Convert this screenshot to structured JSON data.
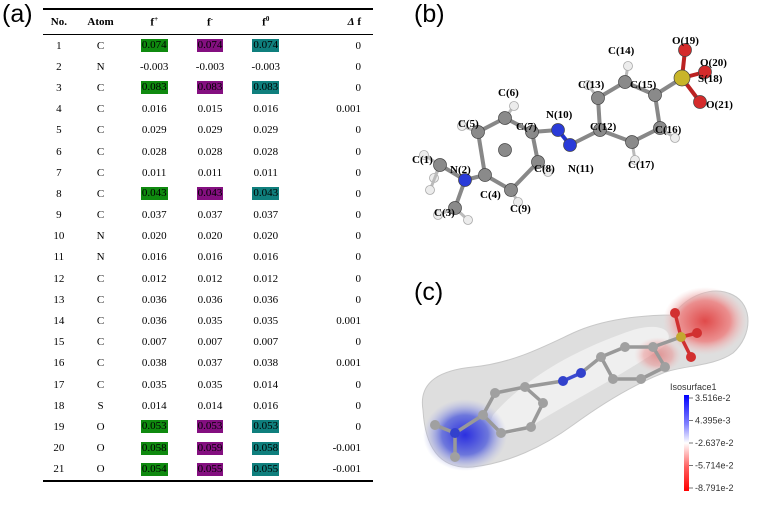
{
  "panels": {
    "a": "(a)",
    "b": "(b)",
    "c": "(c)"
  },
  "table": {
    "headers": {
      "no": "No.",
      "atom": "Atom",
      "fplus_base": "f",
      "fplus_sup": "+",
      "fminus_base": "f",
      "fminus_sup": "-",
      "fzero_base": "f",
      "fzero_sup": "0",
      "delta_sym": "Δ",
      "delta_f": "f"
    },
    "rows": [
      {
        "no": "1",
        "atom": "C",
        "fp": "0.074",
        "fm": "0.074",
        "f0": "0.074",
        "df": "0",
        "hl": true
      },
      {
        "no": "2",
        "atom": "N",
        "fp": "-0.003",
        "fm": "-0.003",
        "f0": "-0.003",
        "df": "0",
        "hl": false
      },
      {
        "no": "3",
        "atom": "C",
        "fp": "0.083",
        "fm": "0.083",
        "f0": "0.083",
        "df": "0",
        "hl": true
      },
      {
        "no": "4",
        "atom": "C",
        "fp": "0.016",
        "fm": "0.015",
        "f0": "0.016",
        "df": "0.001",
        "hl": false
      },
      {
        "no": "5",
        "atom": "C",
        "fp": "0.029",
        "fm": "0.029",
        "f0": "0.029",
        "df": "0",
        "hl": false
      },
      {
        "no": "6",
        "atom": "C",
        "fp": "0.028",
        "fm": "0.028",
        "f0": "0.028",
        "df": "0",
        "hl": false
      },
      {
        "no": "7",
        "atom": "C",
        "fp": "0.011",
        "fm": "0.011",
        "f0": "0.011",
        "df": "0",
        "hl": false
      },
      {
        "no": "8",
        "atom": "C",
        "fp": "0.043",
        "fm": "0.043",
        "f0": "0.043",
        "df": "0",
        "hl": true
      },
      {
        "no": "9",
        "atom": "C",
        "fp": "0.037",
        "fm": "0.037",
        "f0": "0.037",
        "df": "0",
        "hl": false
      },
      {
        "no": "10",
        "atom": "N",
        "fp": "0.020",
        "fm": "0.020",
        "f0": "0.020",
        "df": "0",
        "hl": false
      },
      {
        "no": "11",
        "atom": "N",
        "fp": "0.016",
        "fm": "0.016",
        "f0": "0.016",
        "df": "0",
        "hl": false
      },
      {
        "no": "12",
        "atom": "C",
        "fp": "0.012",
        "fm": "0.012",
        "f0": "0.012",
        "df": "0",
        "hl": false
      },
      {
        "no": "13",
        "atom": "C",
        "fp": "0.036",
        "fm": "0.036",
        "f0": "0.036",
        "df": "0",
        "hl": false
      },
      {
        "no": "14",
        "atom": "C",
        "fp": "0.036",
        "fm": "0.035",
        "f0": "0.035",
        "df": "0.001",
        "hl": false
      },
      {
        "no": "15",
        "atom": "C",
        "fp": "0.007",
        "fm": "0.007",
        "f0": "0.007",
        "df": "0",
        "hl": false
      },
      {
        "no": "16",
        "atom": "C",
        "fp": "0.038",
        "fm": "0.037",
        "f0": "0.038",
        "df": "0.001",
        "hl": false
      },
      {
        "no": "17",
        "atom": "C",
        "fp": "0.035",
        "fm": "0.035",
        "f0": "0.014",
        "df": "0",
        "hl": false
      },
      {
        "no": "18",
        "atom": "S",
        "fp": "0.014",
        "fm": "0.014",
        "f0": "0.016",
        "df": "0",
        "hl": false
      },
      {
        "no": "19",
        "atom": "O",
        "fp": "0.053",
        "fm": "0.053",
        "f0": "0.053",
        "df": "0",
        "hl": true
      },
      {
        "no": "20",
        "atom": "O",
        "fp": "0.058",
        "fm": "0.059",
        "f0": "0.058",
        "df": "-0.001",
        "hl": true
      },
      {
        "no": "21",
        "atom": "O",
        "fp": "0.054",
        "fm": "0.055",
        "f0": "0.055",
        "df": "-0.001",
        "hl": true
      }
    ]
  },
  "highlight_colors": {
    "fplus": "#0f8a0f",
    "fminus": "#840f80",
    "fzero": "#0f7f7d"
  },
  "molecule": {
    "labels": {
      "C1": "C(1)",
      "N2": "N(2)",
      "C3": "C(3)",
      "C4": "C(4)",
      "C5": "C(5)",
      "C6": "C(6)",
      "C7": "C(7)",
      "C8": "C(8)",
      "C9": "C(9)",
      "N10": "N(10)",
      "N11": "N(11)",
      "C12": "C(12)",
      "C13": "C(13)",
      "C14": "C(14)",
      "C15": "C(15)",
      "C16": "C(16)",
      "C17": "C(17)",
      "S18": "S(18)",
      "O19": "O(19)",
      "O20": "O(20)",
      "O21": "O(21)"
    }
  },
  "esp": {
    "legend_title": "Isosurface1",
    "legend_values": [
      "3.516e-2",
      "4.395e-3",
      "-2.637e-2",
      "-5.714e-2",
      "-8.791e-2"
    ]
  }
}
